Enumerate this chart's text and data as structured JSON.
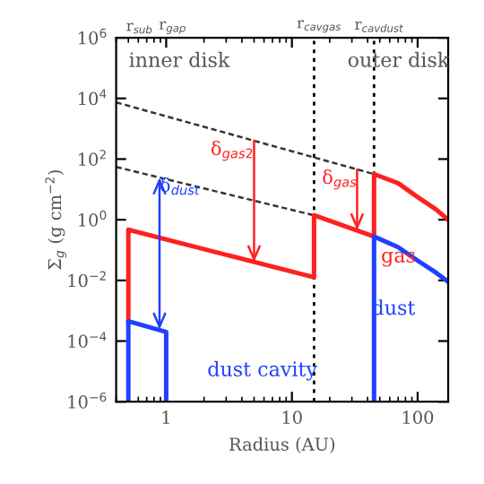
{
  "chart_data": {
    "type": "line",
    "xlabel": "Radius (AU)",
    "ylabel": "Σ$_{g}$ (g cm$^{−2}$)",
    "log": "xy",
    "xlim": [
      0.4,
      175
    ],
    "xticks": [
      1,
      10,
      100
    ],
    "ylim": [
      1e-06,
      1000000.0
    ],
    "yticks": [
      {
        "value": 1e-06,
        "label": "10$^{−6}$"
      },
      {
        "value": 0.0001,
        "label": "10$^{−4}$"
      },
      {
        "value": 0.01,
        "label": "10$^{−2}$"
      },
      {
        "value": 1,
        "label": "10$^{0}$"
      },
      {
        "value": 100,
        "label": "10$^{2}$"
      },
      {
        "value": 10000,
        "label": "10$^{4}$"
      },
      {
        "value": 1000000,
        "label": "10$^{6}$"
      }
    ],
    "grid": false,
    "legend": false,
    "ref_lines": [
      {
        "axis": "x",
        "value": 15,
        "color": "#000000",
        "line_style": "dotted",
        "label": "r$_{cavgas}$"
      },
      {
        "axis": "x",
        "value": 45,
        "color": "#000000",
        "line_style": "dotted",
        "label": "r$_{cavdust}$"
      }
    ],
    "annotations": [
      "inner disk",
      "outer disk",
      "dust cavity",
      "r$_{sub}$",
      "r$_{gap}$",
      {
        "text": "δ$_{gas2}$",
        "x": 5,
        "y": 0.04
      },
      {
        "text": "δ$_{dust}$",
        "x": 0.885,
        "y": 0.00024
      },
      {
        "text": "δ$_{gas}$",
        "x": 33,
        "y": 0.45
      }
    ],
    "series": [
      {
        "type": "line",
        "color": "#333333",
        "line_style": "dashed",
        "x": [
          0.4,
          45
        ],
        "values": [
          7400,
          32
        ]
      },
      {
        "type": "line",
        "color": "#333333",
        "line_style": "dashed",
        "x": [
          0.4,
          15
        ],
        "values": [
          55,
          1.4
        ]
      },
      {
        "type": "line",
        "name": "gas",
        "color": "#ff2020",
        "line_style": "solid",
        "x": [
          0.5,
          0.5,
          15,
          15,
          45,
          45,
          70,
          100,
          140,
          175
        ],
        "values": [
          0.00045,
          0.47,
          0.0126,
          1.4,
          0.28,
          32,
          16,
          5.6,
          2.2,
          1
        ]
      },
      {
        "type": "line",
        "name": "dust",
        "color": "#2040ff",
        "line_style": "solid",
        "x": [
          0.5,
          0.5,
          1,
          1,
          null,
          45,
          45,
          70,
          100,
          140,
          175
        ],
        "values": [
          1e-06,
          0.00045,
          0.0002,
          1e-06,
          null,
          1e-06,
          0.28,
          0.125,
          0.045,
          0.018,
          0.009
        ]
      }
    ]
  }
}
